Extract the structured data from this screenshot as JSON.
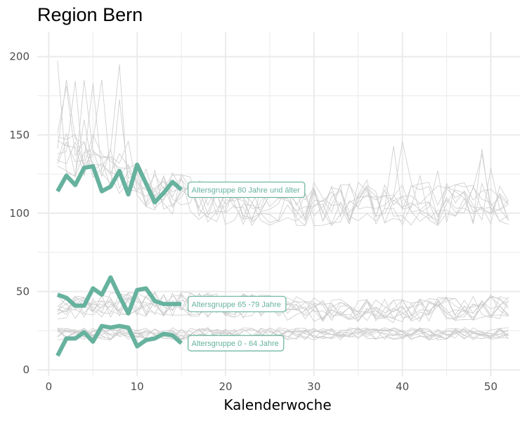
{
  "chart_data": {
    "type": "line",
    "title": "Region Bern",
    "xlabel": "Kalenderwoche",
    "ylabel": "",
    "xlim": [
      -1.3,
      53.3
    ],
    "ylim": [
      -4,
      216
    ],
    "x_ticks": [
      0,
      10,
      20,
      30,
      40,
      50
    ],
    "y_ticks": [
      0,
      50,
      100,
      150,
      200
    ],
    "grid": true,
    "highlight_color": "#66b29e",
    "background_color": "#cccccc",
    "highlight_series": [
      {
        "name": "Altersgruppe 80 Jahre und älter",
        "label_x": 16,
        "label_y": 115,
        "x": [
          1,
          2,
          3,
          4,
          5,
          6,
          7,
          8,
          9,
          10,
          11,
          12,
          13,
          14,
          15
        ],
        "values": [
          114,
          124,
          118,
          129,
          130,
          114,
          117,
          127,
          112,
          131,
          119,
          107,
          113,
          120,
          115
        ]
      },
      {
        "name": "Altersgruppe 65 -79 Jahre",
        "label_x": 16,
        "label_y": 42,
        "x": [
          1,
          2,
          3,
          4,
          5,
          6,
          7,
          8,
          9,
          10,
          11,
          12,
          13,
          14,
          15
        ],
        "values": [
          48,
          46,
          41,
          41,
          52,
          48,
          59,
          47,
          36,
          51,
          52,
          44,
          42,
          42,
          42
        ]
      },
      {
        "name": "Altersgruppe 0 - 64 Jahre",
        "label_x": 16,
        "label_y": 17,
        "x": [
          1,
          2,
          3,
          4,
          5,
          6,
          7,
          8,
          9,
          10,
          11,
          12,
          13,
          14,
          15
        ],
        "values": [
          9,
          20,
          20,
          24,
          18,
          28,
          27,
          28,
          27,
          15,
          19,
          20,
          23,
          22,
          17
        ]
      }
    ]
  }
}
